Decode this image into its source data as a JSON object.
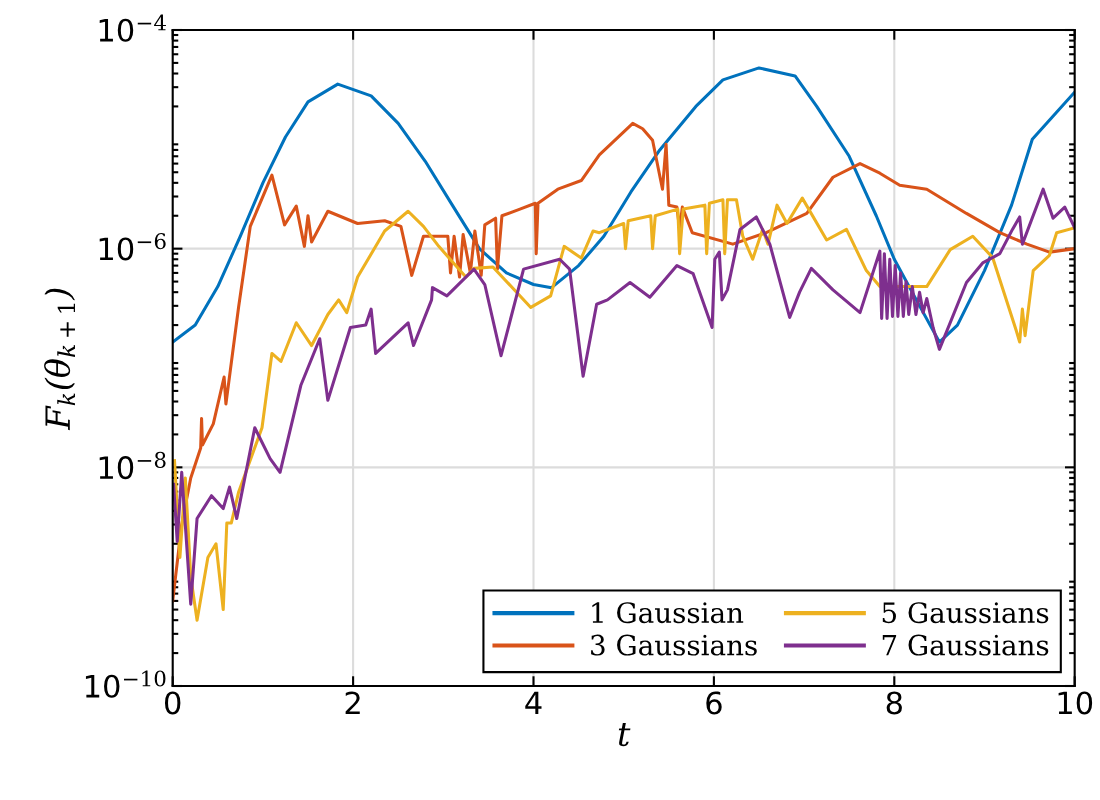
{
  "chart_data": {
    "type": "line",
    "xlabel": "t",
    "ylabel": "F$_{k}$(θ$_{k+1}$)",
    "log": "y",
    "xlim": [
      0,
      10
    ],
    "xticks": [
      0,
      2,
      4,
      6,
      8,
      10
    ],
    "ylim": [
      1e-10,
      0.0001
    ],
    "yticks": [
      {
        "value": 1e-10,
        "label": "10$^{−10}$"
      },
      {
        "value": 1e-08,
        "label": "10$^{−8}$"
      },
      {
        "value": 1e-06,
        "label": "10$^{−6}$"
      },
      {
        "value": 0.0001,
        "label": "10$^{−4}$"
      }
    ],
    "grid": true,
    "legend": "bottom right",
    "line_style": "solid",
    "marker": "none",
    "series": [
      {
        "name": "1 Gaussian",
        "color": "#0072bd",
        "x": [
          0,
          0.25,
          0.5,
          0.75,
          1.0,
          1.25,
          1.5,
          1.83,
          2.2,
          2.5,
          2.8,
          3.1,
          3.4,
          3.7,
          4.0,
          4.2,
          4.5,
          4.78,
          5.08,
          5.4,
          5.8,
          6.1,
          6.5,
          6.9,
          7.14,
          7.5,
          7.8,
          8.0,
          8.3,
          8.5,
          8.7,
          9.0,
          9.3,
          9.53,
          10
        ],
        "values": [
          1.4e-07,
          2e-07,
          4.5e-07,
          1.3e-06,
          4e-06,
          1.05e-05,
          2.2e-05,
          3.2e-05,
          2.5e-05,
          1.4e-05,
          6.3e-06,
          2.5e-06,
          1e-06,
          6e-07,
          4.7e-07,
          4.4e-07,
          7e-07,
          1.3e-06,
          3.3e-06,
          8e-06,
          2e-05,
          3.5e-05,
          4.5e-05,
          3.8e-05,
          2e-05,
          7e-06,
          2e-06,
          8e-07,
          2.8e-07,
          1.4e-07,
          2e-07,
          6.3e-07,
          2.5e-06,
          1e-05,
          2.7e-05
        ]
      },
      {
        "name": "3 Gaussians",
        "color": "#d95319",
        "x": [
          0,
          0.1,
          0.2,
          0.31,
          0.32,
          0.33,
          0.45,
          0.57,
          0.59,
          0.73,
          0.86,
          1.1,
          1.24,
          1.37,
          1.46,
          1.5,
          1.54,
          1.72,
          2.05,
          2.35,
          2.53,
          2.65,
          2.78,
          2.95,
          3.05,
          3.08,
          3.12,
          3.18,
          3.22,
          3.3,
          3.35,
          3.42,
          3.46,
          3.58,
          3.6,
          3.65,
          3.85,
          4.02,
          4.03,
          4.05,
          4.27,
          4.53,
          4.73,
          5.08,
          5.1,
          5.21,
          5.32,
          5.43,
          5.47,
          5.5,
          5.59,
          5.62,
          5.65,
          5.76,
          6.21,
          6.58,
          7.03,
          7.32,
          7.62,
          7.84,
          8.06,
          8.36,
          8.8,
          9.17,
          9.47,
          9.72,
          10
        ],
        "values": [
          6e-10,
          3e-09,
          8e-09,
          1.5e-08,
          2.8e-08,
          1.6e-08,
          2.5e-08,
          6.7e-08,
          3.8e-08,
          2.9e-07,
          1.6e-06,
          4.7e-06,
          1.65e-06,
          2.45e-06,
          1.05e-06,
          2e-06,
          1.15e-06,
          2.2e-06,
          1.7e-06,
          1.8e-06,
          1.6e-06,
          5.7e-07,
          1.3e-06,
          1.3e-06,
          1.3e-06,
          6e-07,
          1.3e-06,
          5.5e-07,
          1.35e-06,
          6e-07,
          1.45e-06,
          5.7e-07,
          1.65e-06,
          1.9e-06,
          6.5e-07,
          2e-06,
          2.3e-06,
          2.6e-06,
          9e-07,
          2.6e-06,
          3.5e-06,
          4.2e-06,
          7.2e-06,
          1.35e-05,
          1.4e-05,
          1.25e-05,
          9.8e-06,
          3.5e-06,
          9e-06,
          2.5e-06,
          2.4e-06,
          1.5e-06,
          2.4e-06,
          1.4e-06,
          1.1e-06,
          1.4e-06,
          2.1e-06,
          4.5e-06,
          6e-06,
          4.9e-06,
          3.8e-06,
          3.5e-06,
          2.1e-06,
          1.4e-06,
          1.1e-06,
          9.3e-07,
          1e-06
        ]
      },
      {
        "name": "5 Gaussians",
        "color": "#edb120",
        "x": [
          0.02,
          0.08,
          0.14,
          0.2,
          0.27,
          0.39,
          0.48,
          0.56,
          0.6,
          0.65,
          0.73,
          0.99,
          1.1,
          1.2,
          1.37,
          1.54,
          1.72,
          1.84,
          1.93,
          2.05,
          2.35,
          2.61,
          2.78,
          2.95,
          3.25,
          3.34,
          3.55,
          3.97,
          4.19,
          4.34,
          4.53,
          4.66,
          4.73,
          5.0,
          5.02,
          5.05,
          5.3,
          5.32,
          5.35,
          5.6,
          5.62,
          5.66,
          5.9,
          5.92,
          5.95,
          6.1,
          6.12,
          6.15,
          6.25,
          6.32,
          6.43,
          6.54,
          6.6,
          6.7,
          6.81,
          6.98,
          7.25,
          7.47,
          7.69,
          7.84,
          8.36,
          8.62,
          8.87,
          9.09,
          9.35,
          9.39,
          9.42,
          9.45,
          9.54,
          9.72,
          9.8,
          10
        ],
        "values": [
          1.15e-08,
          1.5e-09,
          8e-09,
          1e-09,
          4e-10,
          1.5e-09,
          2e-09,
          5e-10,
          3.1e-09,
          3.1e-09,
          5.9e-09,
          2.3e-08,
          1.1e-07,
          9.3e-08,
          2.1e-07,
          1.3e-07,
          2.5e-07,
          3.4e-07,
          2.6e-07,
          5.5e-07,
          1.45e-06,
          2.2e-06,
          1.6e-06,
          1.05e-06,
          5.5e-07,
          6.6e-07,
          6.8e-07,
          2.9e-07,
          3.7e-07,
          1.05e-06,
          8.2e-07,
          1.45e-06,
          1.4e-06,
          1.7e-06,
          1e-06,
          1.8e-06,
          2e-06,
          1e-06,
          2e-06,
          2.3e-06,
          9e-07,
          2.3e-06,
          2.5e-06,
          9e-07,
          2.6e-06,
          2.8e-06,
          9e-07,
          2.8e-06,
          2.8e-06,
          1.3e-06,
          8e-07,
          1.5e-06,
          1.1e-06,
          2.5e-06,
          1.7e-06,
          2.9e-06,
          1.2e-06,
          1.5e-06,
          6.3e-07,
          4.5e-07,
          4.5e-07,
          9.8e-07,
          1.3e-06,
          8.3e-07,
          1.8e-07,
          1.4e-07,
          2.8e-07,
          1.6e-07,
          6.3e-07,
          8.7e-07,
          1.4e-06,
          1.55e-06
        ]
      },
      {
        "name": "7 Gaussians",
        "color": "#7e2f8e",
        "x": [
          0.01,
          0.05,
          0.1,
          0.2,
          0.27,
          0.43,
          0.56,
          0.63,
          0.71,
          0.91,
          1.08,
          1.19,
          1.42,
          1.63,
          1.72,
          1.97,
          2.14,
          2.2,
          2.25,
          2.61,
          2.67,
          2.87,
          2.88,
          3.04,
          3.34,
          3.46,
          3.64,
          3.89,
          4.29,
          4.4,
          4.55,
          4.7,
          4.82,
          5.07,
          5.29,
          5.59,
          5.77,
          5.98,
          6.01,
          6.06,
          6.09,
          6.15,
          6.29,
          6.47,
          6.62,
          6.84,
          6.95,
          7.08,
          7.32,
          7.62,
          7.84,
          7.86,
          7.89,
          7.92,
          7.95,
          7.98,
          8.01,
          8.04,
          8.07,
          8.1,
          8.13,
          8.16,
          8.2,
          8.24,
          8.28,
          8.32,
          8.36,
          8.43,
          8.5,
          8.8,
          8.98,
          9.17,
          9.31,
          9.39,
          9.42,
          9.65,
          9.76,
          9.89,
          10
        ],
        "values": [
          7e-09,
          2.1e-09,
          9e-09,
          5.6e-10,
          3.4e-09,
          5.5e-09,
          4.2e-09,
          6.6e-09,
          3.4e-09,
          2.3e-08,
          1.2e-08,
          9e-09,
          5.6e-08,
          1.5e-07,
          4.1e-08,
          1.9e-07,
          2e-07,
          2.8e-07,
          1.1e-07,
          2.1e-07,
          1.3e-07,
          3.4e-07,
          4.4e-07,
          3.7e-07,
          6.5e-07,
          4.7e-07,
          1.05e-07,
          6.5e-07,
          8e-07,
          6.5e-07,
          6.8e-08,
          3.1e-07,
          3.4e-07,
          4.9e-07,
          3.6e-07,
          7e-07,
          5.9e-07,
          1.9e-07,
          8e-07,
          9.3e-07,
          3.4e-07,
          4.2e-07,
          1.5e-06,
          1.95e-06,
          1.1e-06,
          2.35e-07,
          4e-07,
          6.6e-07,
          4.2e-07,
          2.6e-07,
          9.5e-07,
          2.3e-07,
          9e-07,
          2.3e-07,
          8e-07,
          2.4e-07,
          7e-07,
          2.4e-07,
          6e-07,
          2.4e-07,
          5e-07,
          2.5e-07,
          4.5e-07,
          2.5e-07,
          4e-07,
          2.6e-07,
          3.5e-07,
          1.9e-07,
          1.2e-07,
          4.9e-07,
          7.4e-07,
          9e-07,
          1.5e-06,
          1.95e-06,
          1.1e-06,
          3.5e-06,
          1.9e-06,
          2.4e-06,
          1.55e-06
        ]
      }
    ]
  }
}
